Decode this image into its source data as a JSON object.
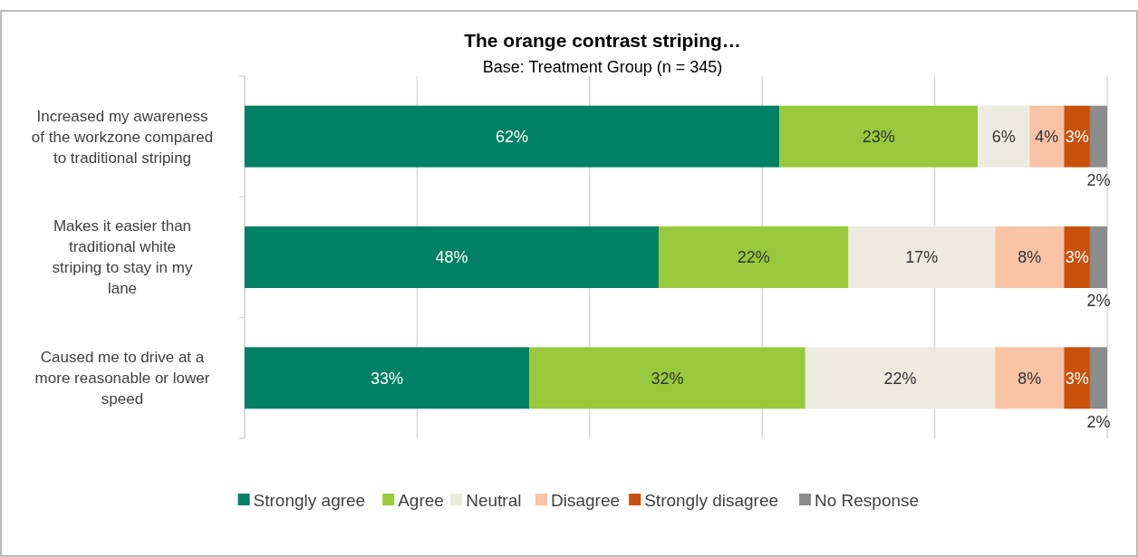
{
  "chart_data": {
    "type": "bar",
    "orientation": "horizontal",
    "stacked": true,
    "title": "The orange contrast striping…",
    "subtitle": "Base: Treatment Group (n = 345)",
    "categories": [
      "Increased my awareness of the workzone compared to traditional striping",
      "Makes it easier than traditional white striping to stay in my lane",
      "Caused me to drive at a more reasonable or lower speed"
    ],
    "series": [
      {
        "name": "Strongly agree",
        "color": "#008065",
        "values": [
          62,
          48,
          33
        ],
        "value_labels": [
          "62%",
          "48%",
          "33%"
        ]
      },
      {
        "name": "Agree",
        "color": "#98c93c",
        "values": [
          23,
          22,
          32
        ],
        "value_labels": [
          "23%",
          "22%",
          "32%"
        ]
      },
      {
        "name": "Neutral",
        "color": "#edebe0",
        "values": [
          6,
          17,
          22
        ],
        "value_labels": [
          "6%",
          "17%",
          "22%"
        ]
      },
      {
        "name": "Disagree",
        "color": "#f9c3a6",
        "values": [
          4,
          8,
          8
        ],
        "value_labels": [
          "4%",
          "8%",
          "8%"
        ]
      },
      {
        "name": "Strongly disagree",
        "color": "#c9510c",
        "values": [
          3,
          3,
          3
        ],
        "value_labels": [
          "3%",
          "3%",
          "3%"
        ]
      },
      {
        "name": "No Response",
        "color": "#8c8c8c",
        "values": [
          2,
          2,
          2
        ],
        "value_labels": [
          "2%",
          "2%",
          "2%"
        ]
      }
    ],
    "tick_labels": "y",
    "grid": "x",
    "legend": "bottom"
  }
}
